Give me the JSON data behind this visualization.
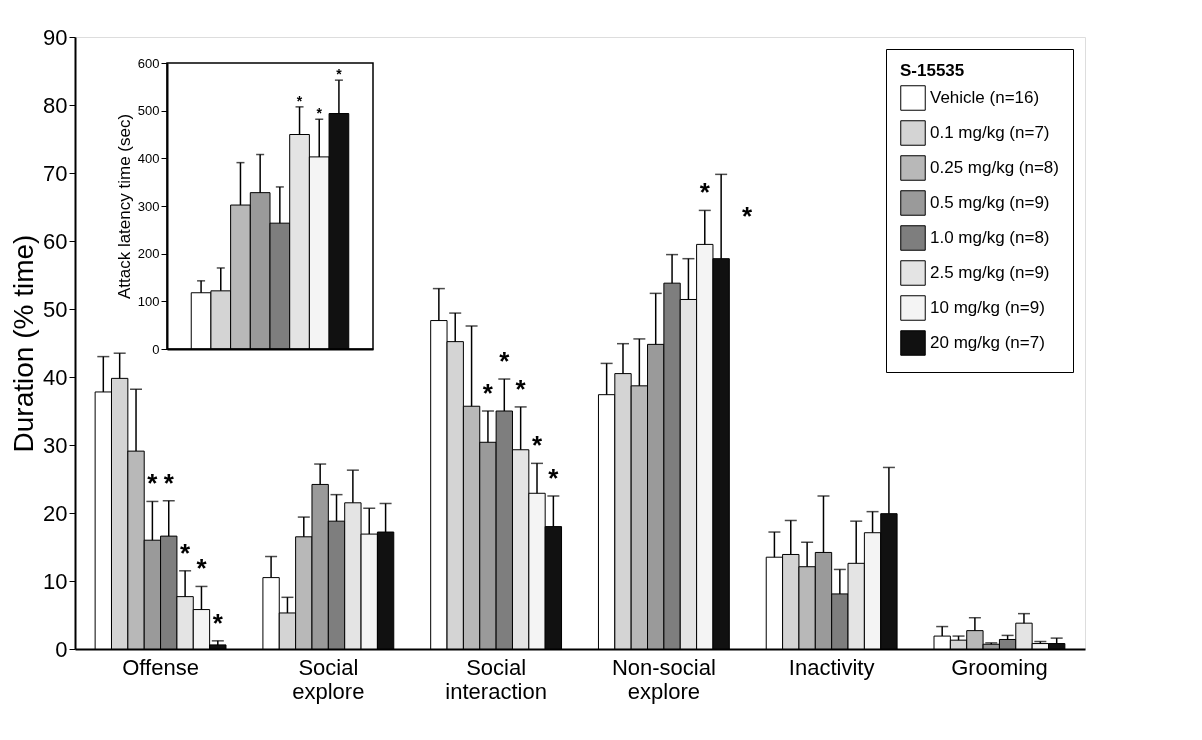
{
  "chart_data": [
    {
      "type": "bar",
      "ylabel": "Duration (% time)",
      "legend_title": "S-15535",
      "legend": "top right",
      "grid": false,
      "categories": [
        "Offense",
        "Social explore",
        "Social interaction",
        "Non-social explore",
        "Inactivity",
        "Grooming"
      ],
      "ylim": [
        0,
        90
      ],
      "yticks": [
        0,
        10,
        20,
        30,
        40,
        50,
        60,
        70,
        80,
        90
      ],
      "series": [
        {
          "name": "Vehicle (n=16)",
          "color": "#ffffff",
          "values": [
            37.8,
            10.5,
            48.3,
            37.4,
            13.5,
            1.9
          ],
          "errors": [
            [
              37.8,
              43.0
            ],
            [
              10.5,
              13.6
            ],
            [
              48.3,
              53.0
            ],
            [
              37.4,
              42.0
            ],
            [
              13.5,
              17.2
            ],
            [
              1.9,
              3.3
            ]
          ]
        },
        {
          "name": "0.1 mg/kg (n=7)",
          "color": "#d4d4d4",
          "values": [
            39.8,
            5.3,
            45.2,
            40.5,
            13.9,
            1.3
          ],
          "errors": [
            [
              39.8,
              43.5
            ],
            [
              5.3,
              7.6
            ],
            [
              45.2,
              49.4
            ],
            [
              40.5,
              44.9
            ],
            [
              13.9,
              18.9
            ],
            [
              1.3,
              1.9
            ]
          ]
        },
        {
          "name": "0.25 mg/kg (n=8)",
          "color": "#b8b8b8",
          "values": [
            29.1,
            16.5,
            35.7,
            38.7,
            12.1,
            2.7
          ],
          "errors": [
            [
              29.1,
              38.2
            ],
            [
              16.5,
              19.4
            ],
            [
              35.7,
              47.5
            ],
            [
              38.7,
              45.6
            ],
            [
              12.1,
              15.7
            ],
            [
              2.7,
              4.6
            ]
          ]
        },
        {
          "name": "0.5 mg/kg (n=9)",
          "color": "#9a9a9a",
          "values": [
            16.0,
            24.2,
            30.4,
            44.8,
            14.2,
            0.7
          ],
          "errors": [
            [
              16.0,
              21.7
            ],
            [
              24.2,
              27.2
            ],
            [
              30.4,
              35.0
            ],
            [
              44.8,
              52.3
            ],
            [
              14.2,
              22.5
            ],
            [
              0.7,
              0.9
            ]
          ],
          "value_labels": [
            "*",
            null,
            "*",
            null,
            null,
            null
          ]
        },
        {
          "name": "1.0 mg/kg (n=8)",
          "color": "#7e7e7e",
          "values": [
            16.6,
            18.8,
            35.0,
            53.8,
            8.1,
            1.4
          ],
          "errors": [
            [
              16.6,
              21.8
            ],
            [
              18.8,
              22.7
            ],
            [
              35.0,
              39.7
            ],
            [
              53.8,
              58.0
            ],
            [
              8.1,
              11.7
            ],
            [
              1.4,
              2.0
            ]
          ],
          "value_labels": [
            "*",
            null,
            "*",
            null,
            null,
            null
          ]
        },
        {
          "name": "2.5 mg/kg (n=9)",
          "color": "#e4e4e4",
          "values": [
            7.7,
            21.5,
            29.3,
            51.4,
            12.6,
            3.8
          ],
          "errors": [
            [
              7.7,
              11.5
            ],
            [
              21.5,
              26.3
            ],
            [
              29.3,
              35.6
            ],
            [
              51.4,
              57.4
            ],
            [
              12.6,
              18.8
            ],
            [
              3.8,
              5.2
            ]
          ],
          "value_labels": [
            "*",
            null,
            "*",
            null,
            null,
            null
          ]
        },
        {
          "name": "10 mg/kg (n=9)",
          "color": "#f4f4f4",
          "values": [
            5.8,
            16.9,
            22.9,
            59.5,
            17.1,
            0.8
          ],
          "errors": [
            [
              5.8,
              9.2
            ],
            [
              16.9,
              20.7
            ],
            [
              22.9,
              27.3
            ],
            [
              59.5,
              64.5
            ],
            [
              17.1,
              20.2
            ],
            [
              0.8,
              1.1
            ]
          ],
          "value_labels": [
            "*",
            null,
            "*",
            "*",
            null,
            null
          ]
        },
        {
          "name": "20 mg/kg (n=7)",
          "color": "#111111",
          "values": [
            0.6,
            17.2,
            18.0,
            57.4,
            19.9,
            0.8
          ],
          "errors": [
            [
              0.6,
              1.2
            ],
            [
              17.2,
              21.4
            ],
            [
              18.0,
              22.5
            ],
            [
              57.4,
              69.8
            ],
            [
              19.9,
              26.7
            ],
            [
              0.8,
              1.6
            ]
          ],
          "value_labels": [
            "*",
            null,
            "*",
            "*",
            null,
            null
          ]
        }
      ]
    },
    {
      "type": "bar",
      "ylabel": "Attack latency time (sec)",
      "grid": false,
      "tick_labels": "y",
      "categories": [
        null
      ],
      "ylim": [
        0,
        600
      ],
      "yticks": [
        0,
        100,
        200,
        300,
        400,
        500,
        600
      ],
      "series": [
        {
          "color": "#ffffff",
          "values": [
            118
          ],
          "errors": [
            [
              118,
              143
            ]
          ]
        },
        {
          "color": "#d4d4d4",
          "values": [
            122
          ],
          "errors": [
            [
              122,
              170
            ]
          ]
        },
        {
          "color": "#b8b8b8",
          "values": [
            302
          ],
          "errors": [
            [
              302,
              391
            ]
          ]
        },
        {
          "color": "#9a9a9a",
          "values": [
            328
          ],
          "errors": [
            [
              328,
              408
            ]
          ]
        },
        {
          "color": "#7e7e7e",
          "values": [
            264
          ],
          "errors": [
            [
              264,
              340
            ]
          ]
        },
        {
          "color": "#e4e4e4",
          "values": [
            450
          ],
          "errors": [
            [
              450,
              508
            ]
          ],
          "value_labels": [
            "*"
          ]
        },
        {
          "color": "#f4f4f4",
          "values": [
            403
          ],
          "errors": [
            [
              403,
              482
            ]
          ],
          "value_labels": [
            "*"
          ]
        },
        {
          "color": "#111111",
          "values": [
            494
          ],
          "errors": [
            [
              494,
              564
            ]
          ],
          "value_labels": [
            "*"
          ]
        }
      ]
    }
  ]
}
